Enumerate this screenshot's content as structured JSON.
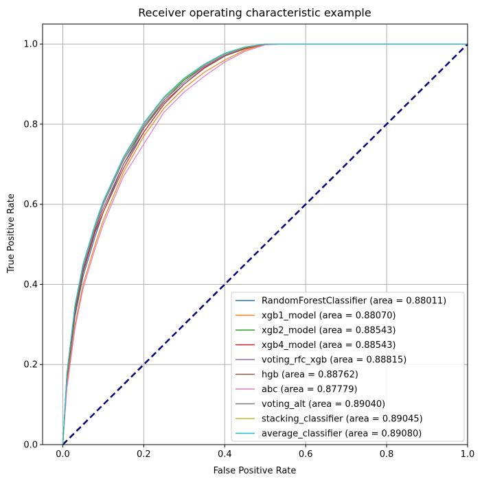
{
  "chart_data": {
    "type": "line",
    "title": "Receiver operating characteristic example",
    "xlabel": "False Positive Rate",
    "ylabel": "True Positive Rate",
    "xlim": [
      -0.05,
      1.0
    ],
    "ylim": [
      0.0,
      1.05
    ],
    "x_ticks": [
      "0.0",
      "0.2",
      "0.4",
      "0.6",
      "0.8",
      "1.0"
    ],
    "y_ticks": [
      "0.0",
      "0.2",
      "0.4",
      "0.6",
      "0.8",
      "1.0"
    ],
    "grid": true,
    "legend_position": "lower-right",
    "series": [
      {
        "name": "RandomForestClassifier (area = 0.88011)",
        "color": "#1f77b4",
        "x": [
          0,
          0.01,
          0.03,
          0.05,
          0.08,
          0.1,
          0.15,
          0.2,
          0.25,
          0.3,
          0.35,
          0.4,
          0.45,
          0.5,
          0.55,
          1.0
        ],
        "y": [
          0,
          0.16,
          0.32,
          0.42,
          0.52,
          0.58,
          0.7,
          0.78,
          0.85,
          0.9,
          0.94,
          0.97,
          0.99,
          1.0,
          1.0,
          1.0
        ]
      },
      {
        "name": "xgb1_model (area = 0.88070)",
        "color": "#ff7f0e",
        "x": [
          0,
          0.01,
          0.03,
          0.05,
          0.08,
          0.1,
          0.15,
          0.2,
          0.25,
          0.3,
          0.35,
          0.4,
          0.45,
          0.5,
          0.55,
          1.0
        ],
        "y": [
          0,
          0.15,
          0.3,
          0.4,
          0.5,
          0.56,
          0.68,
          0.77,
          0.84,
          0.89,
          0.93,
          0.96,
          0.985,
          1.0,
          1.0,
          1.0
        ]
      },
      {
        "name": "xgb2_model (area = 0.88543)",
        "color": "#2ca02c",
        "x": [
          0,
          0.01,
          0.03,
          0.05,
          0.08,
          0.1,
          0.15,
          0.2,
          0.25,
          0.3,
          0.35,
          0.4,
          0.45,
          0.5,
          0.55,
          1.0
        ],
        "y": [
          0,
          0.17,
          0.34,
          0.44,
          0.54,
          0.6,
          0.71,
          0.79,
          0.86,
          0.91,
          0.945,
          0.972,
          0.99,
          1.0,
          1.0,
          1.0
        ]
      },
      {
        "name": "xgb4_model (area = 0.88543)",
        "color": "#d62728",
        "x": [
          0,
          0.01,
          0.03,
          0.05,
          0.08,
          0.1,
          0.15,
          0.2,
          0.25,
          0.3,
          0.35,
          0.4,
          0.45,
          0.5,
          0.55,
          1.0
        ],
        "y": [
          0,
          0.165,
          0.33,
          0.43,
          0.53,
          0.58,
          0.69,
          0.78,
          0.85,
          0.9,
          0.94,
          0.97,
          0.988,
          1.0,
          1.0,
          1.0
        ]
      },
      {
        "name": "voting_rfc_xgb (area = 0.88815)",
        "color": "#9467bd",
        "x": [
          0,
          0.01,
          0.03,
          0.05,
          0.08,
          0.1,
          0.15,
          0.2,
          0.25,
          0.3,
          0.35,
          0.4,
          0.45,
          0.5,
          0.55,
          1.0
        ],
        "y": [
          0,
          0.17,
          0.34,
          0.44,
          0.54,
          0.6,
          0.71,
          0.795,
          0.86,
          0.905,
          0.945,
          0.972,
          0.99,
          1.0,
          1.0,
          1.0
        ]
      },
      {
        "name": "hgb (area = 0.88762)",
        "color": "#8c564b",
        "x": [
          0,
          0.01,
          0.03,
          0.05,
          0.08,
          0.1,
          0.15,
          0.2,
          0.25,
          0.3,
          0.35,
          0.4,
          0.45,
          0.5,
          0.55,
          1.0
        ],
        "y": [
          0,
          0.168,
          0.335,
          0.435,
          0.535,
          0.59,
          0.7,
          0.79,
          0.855,
          0.9,
          0.942,
          0.97,
          0.989,
          1.0,
          1.0,
          1.0
        ]
      },
      {
        "name": "abc (area = 0.87779)",
        "color": "#e377c2",
        "x": [
          0,
          0.01,
          0.03,
          0.05,
          0.08,
          0.1,
          0.15,
          0.2,
          0.25,
          0.3,
          0.35,
          0.4,
          0.45,
          0.5,
          0.55,
          1.0
        ],
        "y": [
          0,
          0.14,
          0.29,
          0.39,
          0.49,
          0.55,
          0.67,
          0.75,
          0.83,
          0.88,
          0.92,
          0.955,
          0.982,
          0.998,
          1.0,
          1.0
        ]
      },
      {
        "name": "voting_alt (area = 0.89040)",
        "color": "#7f7f7f",
        "x": [
          0,
          0.01,
          0.03,
          0.05,
          0.08,
          0.1,
          0.15,
          0.2,
          0.25,
          0.3,
          0.35,
          0.4,
          0.45,
          0.5,
          0.55,
          1.0
        ],
        "y": [
          0,
          0.175,
          0.345,
          0.448,
          0.548,
          0.605,
          0.715,
          0.8,
          0.865,
          0.912,
          0.948,
          0.975,
          0.992,
          1.0,
          1.0,
          1.0
        ]
      },
      {
        "name": "stacking_classifier (area = 0.89045)",
        "color": "#bcbd22",
        "x": [
          0,
          0.01,
          0.03,
          0.05,
          0.08,
          0.1,
          0.15,
          0.2,
          0.25,
          0.3,
          0.35,
          0.4,
          0.45,
          0.5,
          0.55,
          1.0
        ],
        "y": [
          0,
          0.176,
          0.346,
          0.449,
          0.549,
          0.606,
          0.716,
          0.801,
          0.866,
          0.913,
          0.949,
          0.976,
          0.992,
          1.0,
          1.0,
          1.0
        ]
      },
      {
        "name": "average_classifier (area = 0.89080)",
        "color": "#17becf",
        "x": [
          0,
          0.01,
          0.03,
          0.05,
          0.08,
          0.1,
          0.15,
          0.2,
          0.25,
          0.3,
          0.35,
          0.4,
          0.45,
          0.5,
          0.55,
          1.0
        ],
        "y": [
          0,
          0.178,
          0.348,
          0.451,
          0.551,
          0.608,
          0.718,
          0.803,
          0.868,
          0.915,
          0.95,
          0.977,
          0.993,
          1.0,
          1.0,
          1.0
        ]
      }
    ],
    "reference_line": {
      "x": [
        0,
        1
      ],
      "y": [
        0,
        1
      ],
      "color": "#000080",
      "style": "dashed"
    }
  }
}
